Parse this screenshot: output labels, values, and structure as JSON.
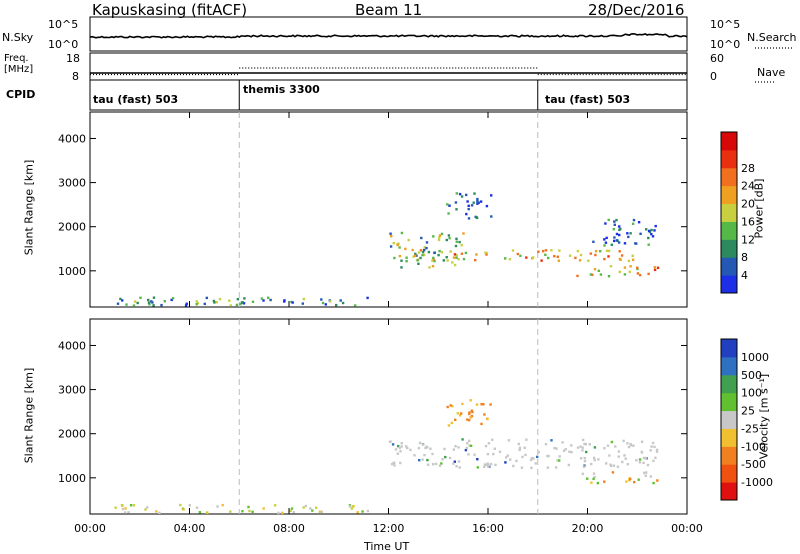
{
  "header": {
    "station": "Kapuskasing (fitACF)",
    "beam": "Beam 11",
    "date": "28/Dec/2016"
  },
  "noise_panel": {
    "left_label": "N.Sky",
    "left_ticks": [
      "10^5",
      "10^0"
    ],
    "right_label": "N.Search",
    "right_ticks": [
      "10^5",
      "10^0"
    ]
  },
  "freq_panel": {
    "left_label_1": "Freq.",
    "left_label_2": "[MHz]",
    "left_ticks": [
      "18",
      "8"
    ],
    "right_label": "Nave",
    "right_ticks": [
      "60",
      "0"
    ]
  },
  "cpid_panel": {
    "label": "CPID",
    "segments": [
      "tau (fast) 503",
      "themis 3300",
      "tau (fast) 503"
    ]
  },
  "chart_data": [
    {
      "type": "heatmap",
      "name": "power",
      "ylabel": "Slant Range [km]",
      "ylim": [
        180,
        4600
      ],
      "y_ticks": [
        1000,
        2000,
        3000,
        4000
      ],
      "x_ticks_hours": [
        0,
        4,
        8,
        12,
        16,
        20,
        24
      ],
      "colorbar": {
        "label": "Power [dB]",
        "ticks": [
          "4",
          "8",
          "12",
          "16",
          "20",
          "24",
          "28"
        ],
        "colors": [
          "#1c2fe6",
          "#2458b4",
          "#2d8a5f",
          "#57b84a",
          "#c8d040",
          "#f0a020",
          "#f07020",
          "#e83010",
          "#d80808"
        ]
      },
      "echo_regions": [
        {
          "x": [
            0.9,
            11.5
          ],
          "y": [
            230,
            420
          ],
          "level": "low-to-mid"
        },
        {
          "x": [
            1.5,
            5.2
          ],
          "y": [
            260,
            370
          ],
          "level": "mid"
        },
        {
          "x": [
            12.0,
            15.0
          ],
          "y": [
            1100,
            1900
          ],
          "level": "mid"
        },
        {
          "x": [
            13.0,
            22.8
          ],
          "y": [
            1250,
            1500
          ],
          "level": "high"
        },
        {
          "x": [
            19.5,
            22.8
          ],
          "y": [
            900,
            1150
          ],
          "level": "high"
        },
        {
          "x": [
            14.3,
            16.2
          ],
          "y": [
            2200,
            2800
          ],
          "level": "low"
        },
        {
          "x": [
            20.0,
            22.8
          ],
          "y": [
            1600,
            2200
          ],
          "level": "low"
        }
      ]
    },
    {
      "type": "heatmap",
      "name": "velocity",
      "ylabel": "Slant Range [km]",
      "ylim": [
        180,
        4600
      ],
      "y_ticks": [
        1000,
        2000,
        3000,
        4000
      ],
      "x_ticks_hours": [
        0,
        4,
        8,
        12,
        16,
        20,
        24
      ],
      "xlabel": "Time UT",
      "x_tick_labels": [
        "00:00",
        "04:00",
        "08:00",
        "12:00",
        "16:00",
        "20:00",
        "00:00"
      ],
      "colorbar": {
        "label": "Velocity [m s⁻¹]",
        "ticks": [
          "1000",
          "500",
          "100",
          "25",
          "-25",
          "-100",
          "-500",
          "-1000"
        ],
        "colors": [
          "#2040c0",
          "#3070c0",
          "#40a050",
          "#60c030",
          "#c8c8c8",
          "#f0c030",
          "#f08020",
          "#f05010",
          "#e01010"
        ]
      },
      "echo_regions": [
        {
          "x": [
            0.9,
            11.5
          ],
          "y": [
            230,
            420
          ],
          "level": "slightly-negative"
        },
        {
          "x": [
            12.0,
            22.8
          ],
          "y": [
            1250,
            1900
          ],
          "level": "ground-scatter"
        },
        {
          "x": [
            14.3,
            16.2
          ],
          "y": [
            2200,
            2800
          ],
          "level": "negative"
        },
        {
          "x": [
            19.5,
            22.8
          ],
          "y": [
            900,
            1150
          ],
          "level": "mixed"
        }
      ]
    }
  ]
}
